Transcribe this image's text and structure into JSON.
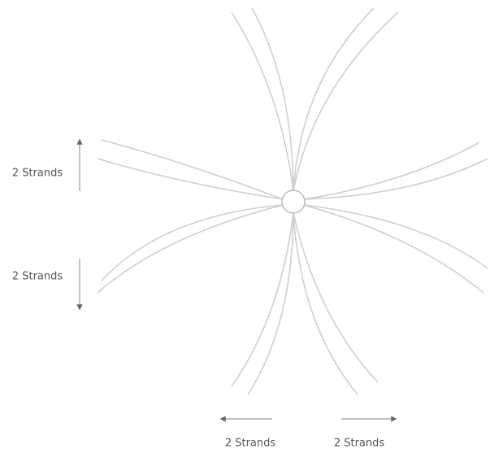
{
  "annotations": [
    {
      "text": "2 Strands"
    },
    {
      "text": "2 Strands"
    },
    {
      "text": "2 Strands"
    },
    {
      "text": "2 Strands"
    }
  ]
}
